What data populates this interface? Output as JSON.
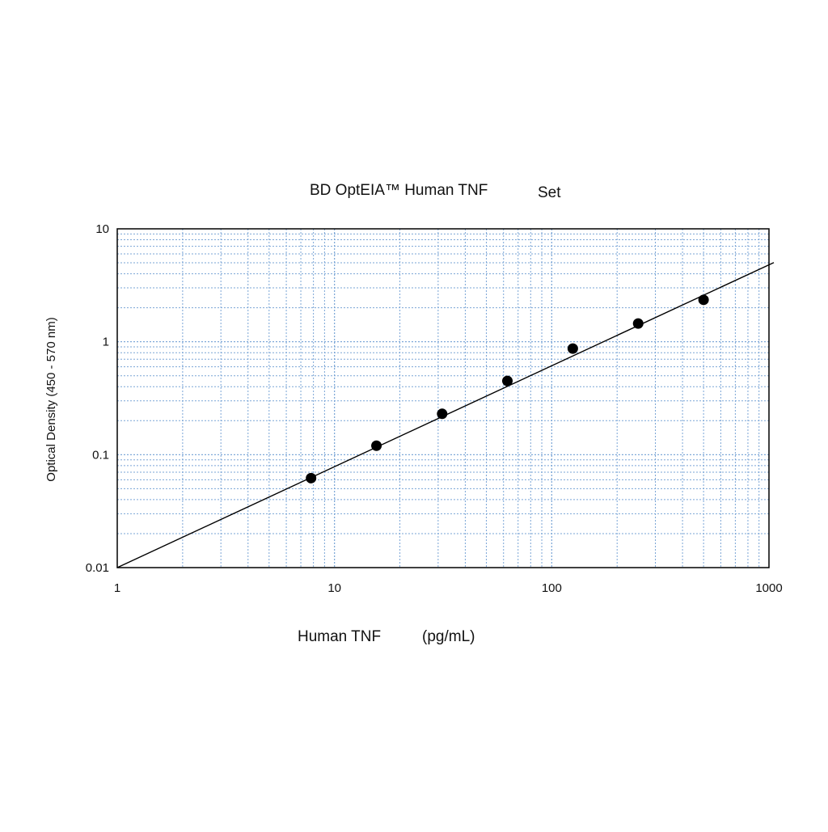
{
  "chart_data": {
    "type": "scatter",
    "title": "BD OptEIA™ Human TNF",
    "subtitle": "Set",
    "xlabel": "Human TNF",
    "xlabel_unit": "(pg/mL)",
    "ylabel": "Optical Density (450 - 570 nm)",
    "x_scale": "log",
    "y_scale": "log",
    "xlim": [
      1,
      1000
    ],
    "ylim": [
      0.01,
      10
    ],
    "x_ticks": [
      "1",
      "10",
      "100",
      "1000"
    ],
    "y_ticks": [
      "10",
      "1",
      "0.1",
      "0.01"
    ],
    "grid": true,
    "grid_color": "#7aa5d6",
    "point_color": "#000000",
    "line_color": "#000000",
    "points": [
      {
        "x": 7.8,
        "y": 0.062
      },
      {
        "x": 15.6,
        "y": 0.12
      },
      {
        "x": 31.3,
        "y": 0.23
      },
      {
        "x": 62.5,
        "y": 0.45
      },
      {
        "x": 125,
        "y": 0.87
      },
      {
        "x": 250,
        "y": 1.45
      },
      {
        "x": 500,
        "y": 2.35
      }
    ],
    "fit_line": [
      {
        "x": 1,
        "y": 0.01
      },
      {
        "x": 1000,
        "y": 4.8
      }
    ]
  }
}
